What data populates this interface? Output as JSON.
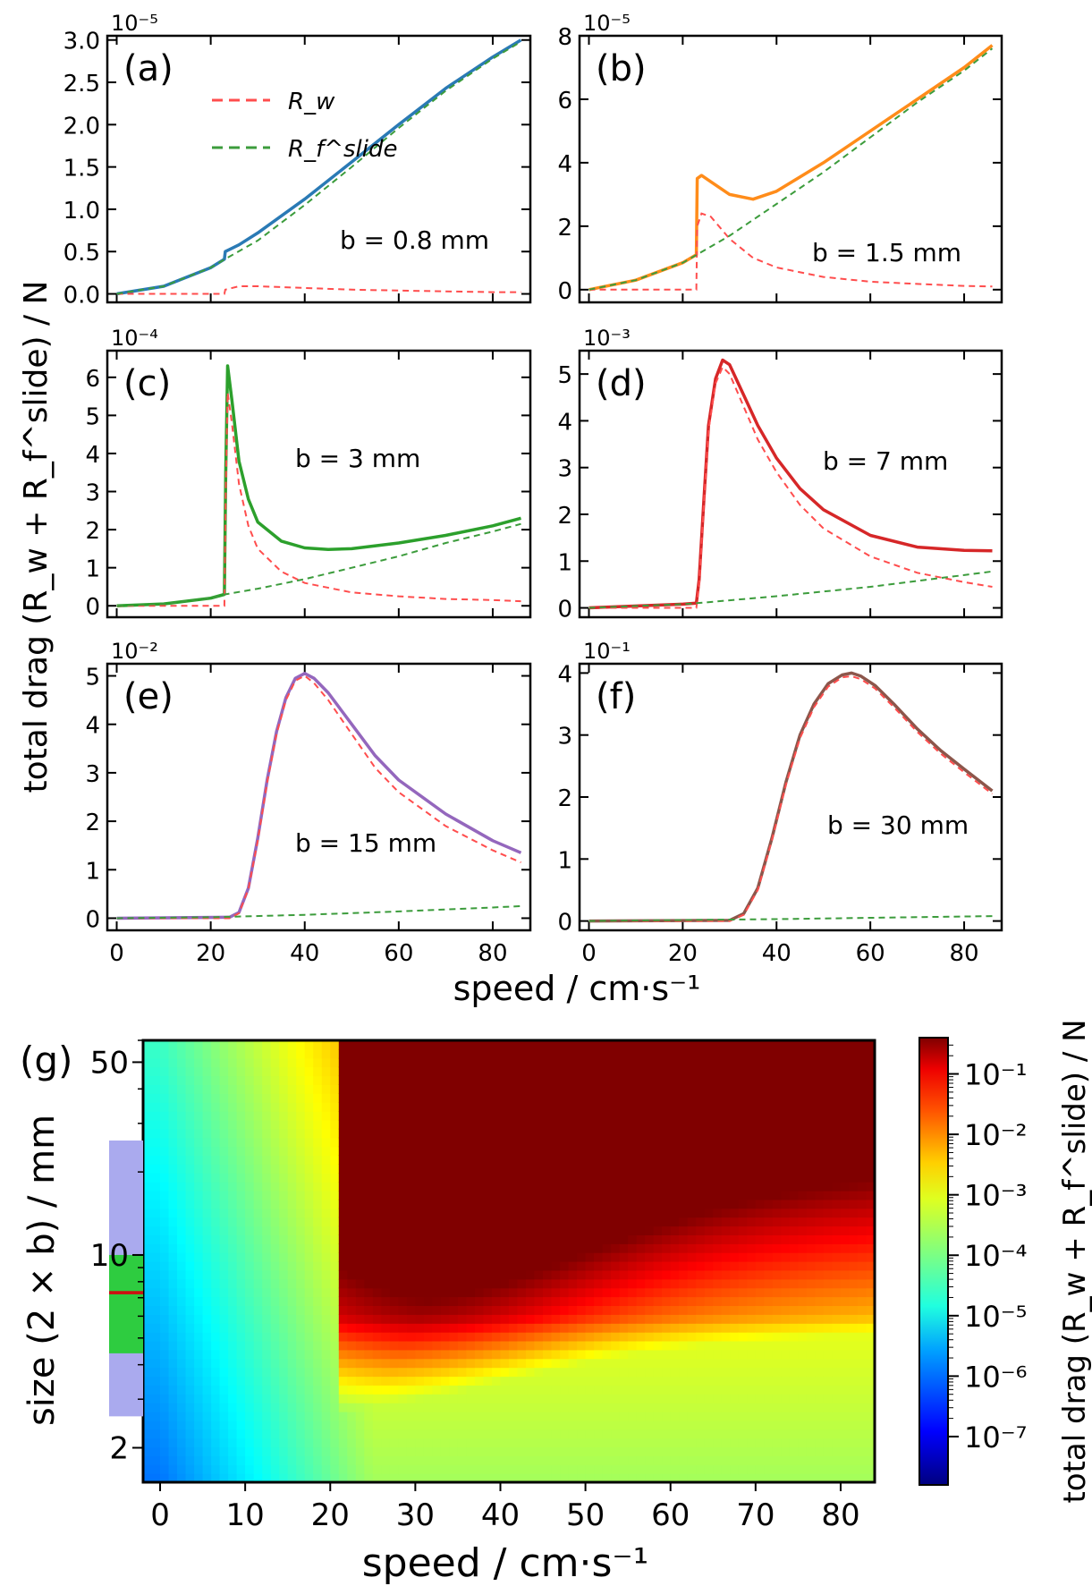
{
  "figure": {
    "top_ylabel": "total drag (R_w + R_f^slide)  /  N",
    "top_xlabel": "speed  /  cm·s⁻¹",
    "legend": {
      "rw_label": "R_w",
      "rf_label": "R_f^slide"
    },
    "colors": {
      "rw": "#ff4d4d",
      "rf": "#3c9c3c"
    }
  },
  "chart_data": [
    {
      "type": "line",
      "panel": "(a)",
      "annotation": "b = 0.8 mm",
      "multiplier": "10⁻⁵",
      "scale_exp": -5,
      "xlim": [
        -2,
        88
      ],
      "ylim": [
        -0.1,
        3.05
      ],
      "xticks": [
        "0",
        "20",
        "40",
        "60",
        "80"
      ],
      "yticks": [
        "0.0",
        "0.5",
        "1.0",
        "1.5",
        "2.0",
        "2.5",
        "3.0"
      ],
      "ytick_values": [
        0,
        0.5,
        1.0,
        1.5,
        2.0,
        2.5,
        3.0
      ],
      "total_color": "#2a7ab5",
      "series": [
        {
          "name": "R_w",
          "style": "dashed",
          "x": [
            0,
            10,
            20,
            22.9,
            23.1,
            26,
            30,
            40,
            50,
            60,
            70,
            80,
            86
          ],
          "y": [
            0,
            0,
            0,
            0,
            0.05,
            0.09,
            0.09,
            0.07,
            0.05,
            0.04,
            0.03,
            0.02,
            0.02
          ]
        },
        {
          "name": "R_f^slide",
          "style": "dashed",
          "x": [
            0,
            10,
            20,
            23,
            30,
            40,
            50,
            60,
            70,
            80,
            86
          ],
          "y": [
            0,
            0.09,
            0.31,
            0.41,
            0.63,
            1.05,
            1.5,
            1.96,
            2.4,
            2.78,
            2.98
          ]
        },
        {
          "style": "solid",
          "x": [
            0,
            10,
            20,
            22.9,
            23.1,
            26,
            30,
            40,
            50,
            60,
            70,
            80,
            86
          ],
          "y": [
            0,
            0.09,
            0.31,
            0.41,
            0.5,
            0.58,
            0.72,
            1.12,
            1.56,
            2.0,
            2.43,
            2.8,
            3.0
          ]
        }
      ]
    },
    {
      "type": "line",
      "panel": "(b)",
      "annotation": "b = 1.5 mm",
      "multiplier": "10⁻⁵",
      "scale_exp": -5,
      "xlim": [
        -2,
        88
      ],
      "ylim": [
        -0.4,
        8.0
      ],
      "xticks": [
        "0",
        "20",
        "40",
        "60",
        "80"
      ],
      "yticks": [
        "0",
        "2",
        "4",
        "6",
        "8"
      ],
      "ytick_values": [
        0,
        2,
        4,
        6,
        8
      ],
      "total_color": "#ff8c1a",
      "series": [
        {
          "name": "R_w",
          "style": "dashed",
          "x": [
            0,
            20,
            22.9,
            23.1,
            24,
            26,
            30,
            35,
            40,
            50,
            60,
            70,
            80,
            86
          ],
          "y": [
            0,
            0,
            0,
            2.0,
            2.4,
            2.3,
            1.6,
            1.0,
            0.7,
            0.4,
            0.25,
            0.18,
            0.12,
            0.1
          ]
        },
        {
          "name": "R_f^slide",
          "style": "dashed",
          "x": [
            0,
            10,
            20,
            23,
            30,
            40,
            50,
            60,
            70,
            80,
            86
          ],
          "y": [
            0,
            0.3,
            0.85,
            1.1,
            1.7,
            2.7,
            3.7,
            4.8,
            5.9,
            6.9,
            7.6
          ]
        },
        {
          "style": "solid",
          "x": [
            0,
            10,
            20,
            22.9,
            23.1,
            24,
            26,
            30,
            35,
            40,
            50,
            60,
            70,
            80,
            86
          ],
          "y": [
            0,
            0.3,
            0.85,
            1.1,
            3.5,
            3.6,
            3.4,
            3.0,
            2.85,
            3.1,
            4.0,
            5.0,
            6.0,
            7.0,
            7.7
          ]
        }
      ]
    },
    {
      "type": "line",
      "panel": "(c)",
      "annotation": "b = 3 mm",
      "multiplier": "10⁻⁴",
      "scale_exp": -4,
      "xlim": [
        -2,
        88
      ],
      "ylim": [
        -0.3,
        6.7
      ],
      "xticks": [
        "0",
        "20",
        "40",
        "60",
        "80"
      ],
      "yticks": [
        "0",
        "1",
        "2",
        "3",
        "4",
        "5",
        "6"
      ],
      "ytick_values": [
        0,
        1,
        2,
        3,
        4,
        5,
        6
      ],
      "total_color": "#2ca02c",
      "series": [
        {
          "name": "R_w",
          "style": "dashed",
          "x": [
            0,
            20,
            22.9,
            23.2,
            23.6,
            24.5,
            26,
            28,
            30,
            35,
            40,
            50,
            60,
            70,
            80,
            86
          ],
          "y": [
            0,
            0,
            0,
            3.0,
            5.6,
            4.8,
            3.2,
            2.1,
            1.5,
            0.9,
            0.6,
            0.35,
            0.25,
            0.18,
            0.15,
            0.12
          ]
        },
        {
          "name": "R_f^slide",
          "style": "dashed",
          "x": [
            0,
            10,
            20,
            23,
            30,
            40,
            50,
            60,
            70,
            80,
            86
          ],
          "y": [
            0,
            0.05,
            0.2,
            0.3,
            0.45,
            0.7,
            1.0,
            1.3,
            1.65,
            1.95,
            2.15
          ]
        },
        {
          "style": "solid",
          "x": [
            0,
            10,
            20,
            22.9,
            23.2,
            23.6,
            24.5,
            26,
            28,
            30,
            35,
            40,
            45,
            50,
            60,
            70,
            80,
            86
          ],
          "y": [
            0,
            0.05,
            0.2,
            0.3,
            3.5,
            6.3,
            5.4,
            3.8,
            2.8,
            2.2,
            1.7,
            1.52,
            1.48,
            1.5,
            1.65,
            1.85,
            2.1,
            2.3
          ]
        }
      ]
    },
    {
      "type": "line",
      "panel": "(d)",
      "annotation": "b = 7 mm",
      "multiplier": "10⁻³",
      "scale_exp": -3,
      "xlim": [
        -2,
        88
      ],
      "ylim": [
        -0.2,
        5.5
      ],
      "xticks": [
        "0",
        "20",
        "40",
        "60",
        "80"
      ],
      "yticks": [
        "0",
        "1",
        "2",
        "3",
        "4",
        "5"
      ],
      "ytick_values": [
        0,
        1,
        2,
        3,
        4,
        5
      ],
      "total_color": "#d62728",
      "series": [
        {
          "name": "R_w",
          "style": "dashed",
          "x": [
            0,
            22.9,
            23.5,
            24.5,
            25.5,
            27,
            28.5,
            30,
            33,
            36,
            40,
            45,
            50,
            60,
            70,
            80,
            86
          ],
          "y": [
            0,
            0,
            0.5,
            2.2,
            3.8,
            4.8,
            5.15,
            5.0,
            4.3,
            3.6,
            2.9,
            2.2,
            1.7,
            1.1,
            0.75,
            0.55,
            0.45
          ]
        },
        {
          "name": "R_f^slide",
          "style": "dashed",
          "x": [
            0,
            20,
            23,
            40,
            60,
            80,
            86
          ],
          "y": [
            0,
            0.08,
            0.1,
            0.25,
            0.45,
            0.7,
            0.78
          ]
        },
        {
          "style": "solid",
          "x": [
            0,
            20,
            22.9,
            23.5,
            24.5,
            25.5,
            27,
            28.5,
            30,
            33,
            36,
            40,
            45,
            50,
            60,
            70,
            80,
            86
          ],
          "y": [
            0,
            0.08,
            0.1,
            0.6,
            2.3,
            3.9,
            4.9,
            5.3,
            5.2,
            4.55,
            3.9,
            3.2,
            2.55,
            2.1,
            1.55,
            1.3,
            1.23,
            1.22
          ]
        }
      ]
    },
    {
      "type": "line",
      "panel": "(e)",
      "annotation": "b = 15 mm",
      "multiplier": "10⁻²",
      "scale_exp": -2,
      "xlim": [
        -2,
        88
      ],
      "ylim": [
        -0.25,
        5.25
      ],
      "xticks": [
        "0",
        "20",
        "40",
        "60",
        "80"
      ],
      "yticks": [
        "0",
        "1",
        "2",
        "3",
        "4",
        "5"
      ],
      "ytick_values": [
        0,
        1,
        2,
        3,
        4,
        5
      ],
      "total_color": "#9467bd",
      "series": [
        {
          "name": "R_w",
          "style": "dashed",
          "x": [
            0,
            24,
            26,
            28,
            30,
            32,
            34,
            36,
            38,
            40,
            42,
            45,
            50,
            55,
            60,
            70,
            80,
            86
          ],
          "y": [
            0,
            0,
            0.1,
            0.6,
            1.6,
            2.8,
            3.8,
            4.5,
            4.9,
            5.0,
            4.85,
            4.5,
            3.8,
            3.1,
            2.6,
            1.9,
            1.4,
            1.15
          ]
        },
        {
          "name": "R_f^slide",
          "style": "dashed",
          "x": [
            0,
            20,
            40,
            60,
            80,
            86
          ],
          "y": [
            0,
            0.02,
            0.07,
            0.14,
            0.22,
            0.25
          ]
        },
        {
          "style": "solid",
          "x": [
            0,
            24,
            26,
            28,
            30,
            32,
            34,
            36,
            38,
            40,
            42,
            45,
            50,
            55,
            60,
            70,
            80,
            86
          ],
          "y": [
            0,
            0.02,
            0.12,
            0.62,
            1.65,
            2.85,
            3.85,
            4.55,
            4.95,
            5.05,
            4.95,
            4.65,
            4.0,
            3.35,
            2.85,
            2.15,
            1.6,
            1.35
          ]
        }
      ]
    },
    {
      "type": "line",
      "panel": "(f)",
      "annotation": "b = 30 mm",
      "multiplier": "10⁻¹",
      "scale_exp": -1,
      "xlim": [
        -2,
        88
      ],
      "ylim": [
        -0.15,
        4.15
      ],
      "xticks": [
        "0",
        "20",
        "40",
        "60",
        "80"
      ],
      "yticks": [
        "0",
        "1",
        "2",
        "3",
        "4"
      ],
      "ytick_values": [
        0,
        1,
        2,
        3,
        4
      ],
      "total_color": "#8c564b",
      "series": [
        {
          "name": "R_w",
          "style": "dashed",
          "x": [
            0,
            30,
            33,
            36,
            39,
            42,
            45,
            48,
            51,
            54,
            56,
            58,
            61,
            65,
            70,
            75,
            80,
            86
          ],
          "y": [
            0,
            0,
            0.1,
            0.5,
            1.3,
            2.2,
            2.95,
            3.45,
            3.78,
            3.93,
            3.95,
            3.9,
            3.75,
            3.45,
            3.05,
            2.7,
            2.4,
            2.05
          ]
        },
        {
          "name": "R_f^slide",
          "style": "dashed",
          "x": [
            0,
            40,
            86
          ],
          "y": [
            0,
            0.03,
            0.08
          ]
        },
        {
          "style": "solid",
          "x": [
            0,
            30,
            33,
            36,
            39,
            42,
            45,
            48,
            51,
            54,
            56,
            58,
            61,
            65,
            70,
            75,
            80,
            86
          ],
          "y": [
            0,
            0.01,
            0.12,
            0.53,
            1.33,
            2.24,
            3.0,
            3.5,
            3.83,
            3.97,
            4.0,
            3.95,
            3.8,
            3.5,
            3.1,
            2.75,
            2.45,
            2.1
          ]
        }
      ]
    },
    {
      "type": "heatmap",
      "panel": "(g)",
      "xlabel": "speed  /  cm·s⁻¹",
      "ylabel": "size (2 × b)  /  mm",
      "colorbar_label": "total drag (R_w + R_f^slide)  /  N",
      "xlim": [
        -2,
        84
      ],
      "ylim": [
        1.5,
        60
      ],
      "yscale": "log",
      "xticks": [
        "0",
        "10",
        "20",
        "30",
        "40",
        "50",
        "60",
        "70",
        "80"
      ],
      "yticks": [
        "2",
        "10",
        "50"
      ],
      "colorbar_ticks": [
        "10⁻⁷",
        "10⁻⁶",
        "10⁻⁵",
        "10⁻⁴",
        "10⁻³",
        "10⁻²",
        "10⁻¹"
      ],
      "colorbar_range_log10": [
        -7.8,
        -0.4
      ],
      "critical_speed": 21,
      "side_bars": [
        {
          "color": "#aaaaee",
          "range_mm": [
            2.6,
            26
          ]
        },
        {
          "color": "#2ecc40",
          "range_mm": [
            4.4,
            10
          ]
        },
        {
          "color": "#cc1111",
          "range_mm": [
            7.2,
            7.4
          ]
        }
      ]
    }
  ]
}
